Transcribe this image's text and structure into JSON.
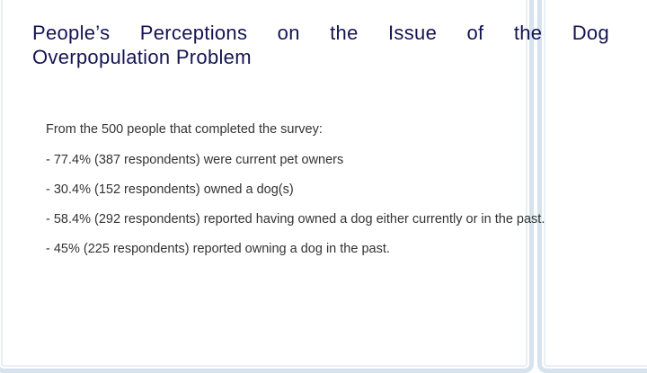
{
  "slide": {
    "title_line1": "People’s Perceptions on the Issue of the Dog",
    "title_line2": "Overpopulation Problem",
    "intro": "From the 500 people that completed the survey:",
    "items": [
      "- 77.4% (387 respondents) were current pet owners",
      "- 30.4% (152 respondents) owned a dog(s)",
      "- 58.4% (292 respondents) reported having owned a dog either currently or in the past.",
      "- 45% (225 respondents) reported owning a dog in the past."
    ]
  },
  "colors": {
    "title": "#141452",
    "body": "#333333",
    "frame": "#d6e2ec"
  }
}
